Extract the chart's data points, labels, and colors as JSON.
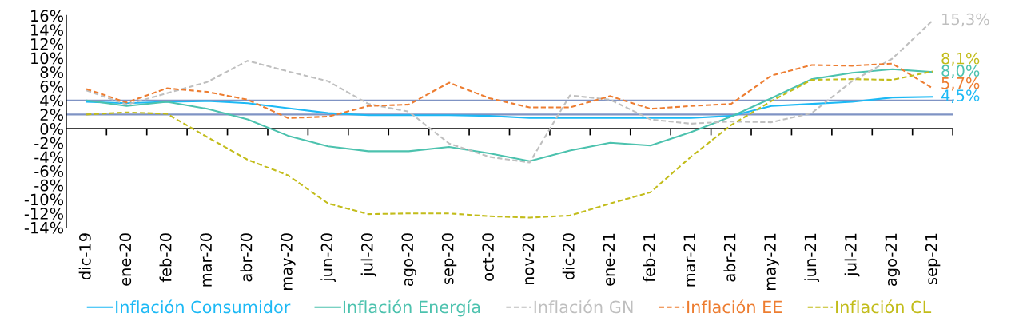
{
  "chart_data": {
    "type": "line",
    "categories": [
      "dic-19",
      "ene-20",
      "feb-20",
      "mar-20",
      "abr-20",
      "may-20",
      "jun-20",
      "jul-20",
      "ago-20",
      "sep-20",
      "oct-20",
      "nov-20",
      "dic-20",
      "ene-21",
      "feb-21",
      "mar-21",
      "abr-21",
      "may-21",
      "jun-21",
      "jul-21",
      "ago-21",
      "sep-21"
    ],
    "series": [
      {
        "name": "Inflación Consumidor",
        "color": "#1cb9f5",
        "line_style": "solid",
        "values": [
          3.8,
          3.6,
          3.8,
          3.9,
          3.6,
          2.9,
          2.2,
          1.9,
          1.9,
          1.9,
          1.8,
          1.5,
          1.5,
          1.5,
          1.5,
          1.5,
          1.8,
          3.2,
          3.5,
          3.8,
          4.4,
          4.5
        ],
        "value_labels": [
          null,
          null,
          null,
          null,
          null,
          null,
          null,
          null,
          null,
          null,
          null,
          null,
          null,
          null,
          null,
          null,
          null,
          null,
          null,
          null,
          null,
          "4,5%"
        ]
      },
      {
        "name": "Inflación Energía",
        "color": "#4cc2ae",
        "line_style": "solid",
        "values": [
          4.0,
          3.2,
          3.8,
          2.8,
          1.3,
          -1.0,
          -2.5,
          -3.2,
          -3.2,
          -2.6,
          -3.5,
          -4.6,
          -3.1,
          -2.0,
          -2.4,
          -0.5,
          1.7,
          4.3,
          7.0,
          7.9,
          8.4,
          8.0
        ],
        "value_labels": [
          null,
          null,
          null,
          null,
          null,
          null,
          null,
          null,
          null,
          null,
          null,
          null,
          null,
          null,
          null,
          null,
          null,
          null,
          null,
          null,
          null,
          "8,0%"
        ]
      },
      {
        "name": "Inflación GN",
        "color": "#bfbfbf",
        "line_style": "dashed",
        "values": [
          5.4,
          3.4,
          5.0,
          6.6,
          9.6,
          8.1,
          6.7,
          3.5,
          2.4,
          -2.1,
          -4.0,
          -4.8,
          4.7,
          4.1,
          1.3,
          0.7,
          1.0,
          0.9,
          2.2,
          6.7,
          9.9,
          15.3
        ],
        "value_labels": [
          null,
          null,
          null,
          null,
          null,
          null,
          null,
          null,
          null,
          null,
          null,
          null,
          null,
          null,
          null,
          null,
          null,
          null,
          null,
          null,
          null,
          "15,3%"
        ]
      },
      {
        "name": "Inflación EE",
        "color": "#ed7d31",
        "line_style": "dashed",
        "values": [
          5.6,
          3.7,
          5.7,
          5.2,
          4.1,
          1.5,
          1.7,
          3.2,
          3.4,
          6.5,
          4.3,
          3.0,
          3.0,
          4.6,
          2.8,
          3.2,
          3.5,
          7.5,
          9.0,
          8.9,
          9.2,
          5.7
        ],
        "value_labels": [
          null,
          null,
          null,
          null,
          null,
          null,
          null,
          null,
          null,
          null,
          null,
          null,
          null,
          null,
          null,
          null,
          null,
          null,
          null,
          null,
          null,
          "5,7%"
        ]
      },
      {
        "name": "Inflación CL",
        "color": "#c2bc1a",
        "line_style": "dashed",
        "values": [
          2.0,
          2.3,
          2.1,
          -1.2,
          -4.4,
          -6.6,
          -10.6,
          -12.1,
          -12.0,
          -12.0,
          -12.4,
          -12.6,
          -12.3,
          -10.6,
          -9.0,
          -4.0,
          0.5,
          3.9,
          6.9,
          7.0,
          6.9,
          8.1
        ],
        "value_labels": [
          null,
          null,
          null,
          null,
          null,
          null,
          null,
          null,
          null,
          null,
          null,
          null,
          null,
          null,
          null,
          null,
          null,
          null,
          null,
          null,
          null,
          "8,1%"
        ]
      }
    ],
    "ylim": [
      -14,
      16
    ],
    "yticks": [
      {
        "value": -14,
        "label": "-14%"
      },
      {
        "value": -12,
        "label": "-12%"
      },
      {
        "value": -10,
        "label": "-10%"
      },
      {
        "value": -8,
        "label": "-8%"
      },
      {
        "value": -6,
        "label": "-6%"
      },
      {
        "value": -4,
        "label": "-4%"
      },
      {
        "value": -2,
        "label": "-2%"
      },
      {
        "value": 0,
        "label": "0%"
      },
      {
        "value": 2,
        "label": "2%"
      },
      {
        "value": 4,
        "label": "4%"
      },
      {
        "value": 6,
        "label": "6%"
      },
      {
        "value": 8,
        "label": "8%"
      },
      {
        "value": 10,
        "label": "10%"
      },
      {
        "value": 12,
        "label": "12%"
      },
      {
        "value": 14,
        "label": "14%"
      },
      {
        "value": 16,
        "label": "16%"
      }
    ],
    "ref_lines": [
      {
        "axis": "y",
        "value": 4,
        "label": null,
        "color": "#7f93c4"
      },
      {
        "axis": "y",
        "value": 2,
        "label": null,
        "color": "#7f93c4"
      }
    ],
    "grid": false,
    "legend": "bottom",
    "marker": "none"
  }
}
